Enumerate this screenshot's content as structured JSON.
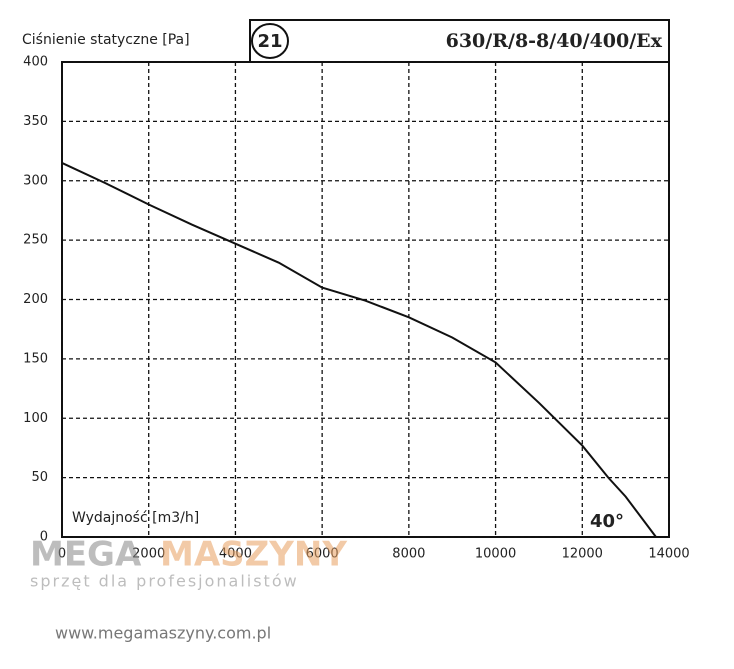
{
  "chart_data": {
    "type": "line",
    "title": "630/R/8-8/40/400/Ex",
    "chart_number": "21",
    "y_label": "Ciśnienie statyczne [Pa]",
    "x_label": "Wydajność [m3/h]",
    "annotation": "40°",
    "color": "#111111",
    "grid": true,
    "x": [
      0,
      1000,
      2000,
      3000,
      4000,
      5000,
      6000,
      7000,
      8000,
      9000,
      10000,
      11000,
      12000,
      12600,
      13000,
      13700
    ],
    "values": [
      315,
      298,
      280,
      263,
      247,
      231,
      210,
      199,
      185,
      168,
      147,
      113,
      77,
      50,
      34,
      0
    ],
    "xlim": [
      0,
      14000
    ],
    "ylim": [
      0,
      400
    ],
    "xticks": [
      0,
      2000,
      4000,
      6000,
      8000,
      10000,
      12000,
      14000
    ],
    "yticks": [
      0,
      50,
      100,
      150,
      200,
      250,
      300,
      350,
      400
    ]
  },
  "watermark": {
    "brand_left": "MEGA",
    "brand_right": "MASZYNY",
    "slogan": "sprzęt dla profesjonalistów",
    "url": "www.megamaszyny.com.pl"
  }
}
